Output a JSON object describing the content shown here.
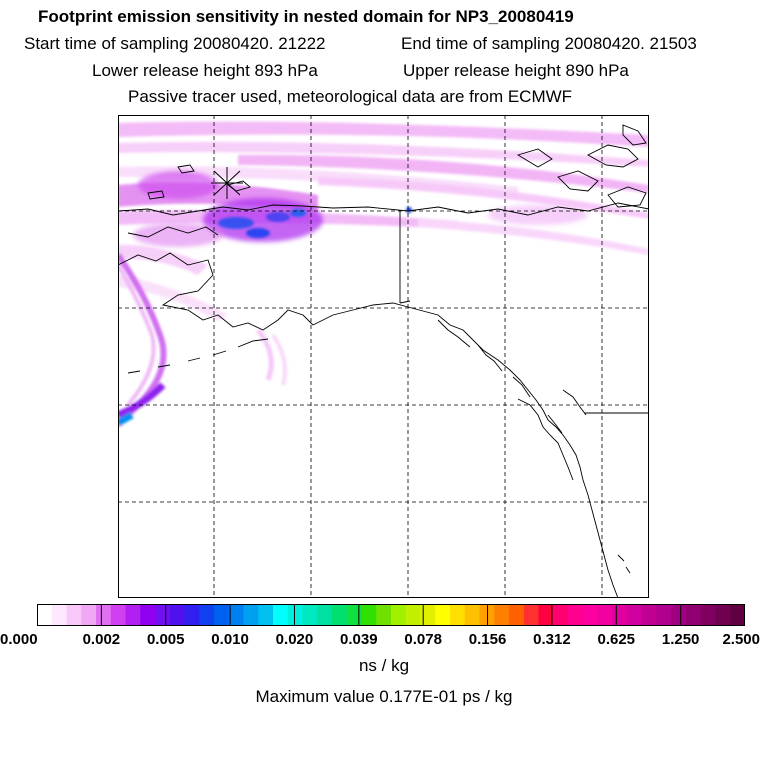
{
  "header": {
    "title": "Footprint emission sensitivity in nested domain for NP3_20080419",
    "start_time": "Start time of sampling 20080420. 21222",
    "end_time": "End time of sampling 20080420. 21503",
    "lower_release": "Lower release height  893 hPa",
    "upper_release": "Upper release height  890 hPa",
    "tracer_note": "Passive tracer used, meteorological data are from ECMWF"
  },
  "map": {
    "release_marker": "release-site star",
    "land_outline_color": "#000000",
    "gridline_style": "dashed"
  },
  "colorbar": {
    "colors": [
      "#ffffff",
      "#ffe8ff",
      "#f8c8f8",
      "#f0a8f4",
      "#e070f0",
      "#d040f0",
      "#b020f0",
      "#9000f0",
      "#7010f0",
      "#5010f0",
      "#3020f0",
      "#1040f0",
      "#0060f0",
      "#0080f0",
      "#00a0f0",
      "#00c0f0",
      "#00ffff",
      "#00f0e0",
      "#00e8c0",
      "#00e0a0",
      "#00e070",
      "#10e040",
      "#30e000",
      "#70e000",
      "#a0f000",
      "#c0f000",
      "#e0f000",
      "#ffff00",
      "#ffe000",
      "#ffc000",
      "#ffa000",
      "#ff8000",
      "#ff6000",
      "#ff3030",
      "#ff0040",
      "#ff0070",
      "#ff0090",
      "#ff00a0",
      "#f000a0",
      "#e000a0",
      "#d000a0",
      "#c00090",
      "#b00090",
      "#a00080",
      "#900070",
      "#800060",
      "#700050",
      "#600040"
    ],
    "tick_labels": [
      "0.000",
      "0.002",
      "0.005",
      "0.010",
      "0.020",
      "0.039",
      "0.078",
      "0.156",
      "0.312",
      "0.625",
      "1.250",
      "2.500"
    ],
    "units": "ns / kg"
  },
  "footer": {
    "max_value": "Maximum value  0.177E-01 ps / kg"
  }
}
